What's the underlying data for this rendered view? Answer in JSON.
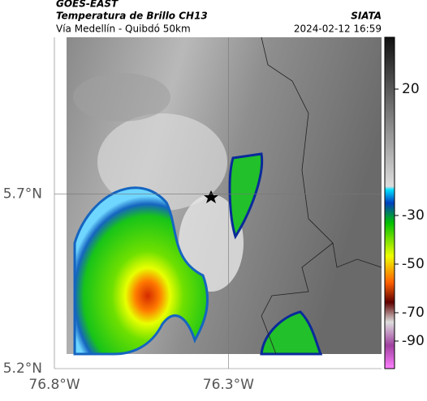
{
  "header": {
    "title": "GOES-EAST",
    "subtitle": "Temperatura de Brillo CH13",
    "region": "Vía Medellín - Quibdó 50km",
    "source": "SIATA",
    "timestamp": "2024-02-12 16:59"
  },
  "map": {
    "xlim": [
      -76.8,
      -75.86
    ],
    "ylim": [
      5.2,
      6.15
    ],
    "xticks": [
      {
        "value": -76.8,
        "label": "76.8°W"
      },
      {
        "value": -76.3,
        "label": "76.3°W"
      }
    ],
    "yticks": [
      {
        "value": 5.7,
        "label": "5.7°N"
      },
      {
        "value": 5.2,
        "label": "5.2°N"
      }
    ],
    "grid": true
  },
  "colorbar": {
    "ticks": [
      20,
      -30,
      -50,
      -70,
      -90
    ]
  }
}
